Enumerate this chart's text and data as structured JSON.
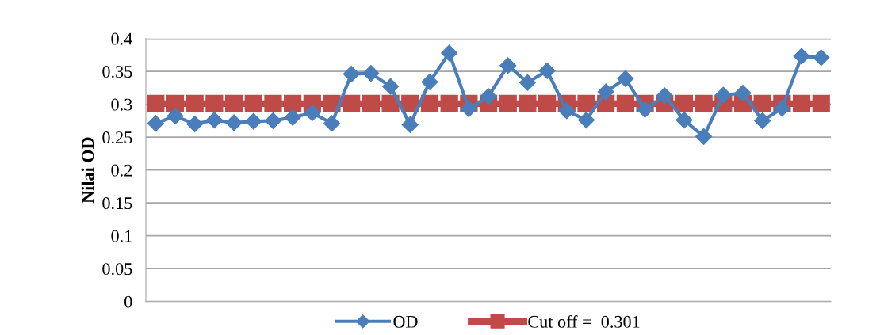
{
  "chart_data": {
    "type": "line",
    "ylabel": "Nilai OD",
    "categories": [
      null,
      null,
      null,
      null,
      null,
      null,
      null,
      null,
      null,
      null,
      null,
      null,
      null,
      null,
      null,
      null,
      null,
      null,
      null,
      null,
      null,
      null,
      null,
      null,
      null,
      null,
      null,
      null,
      null,
      null,
      null,
      null,
      null,
      null,
      null
    ],
    "series": [
      {
        "name": "OD",
        "color": "#4a7ebb",
        "marker": "diamond",
        "values": [
          0.271,
          0.282,
          0.27,
          0.276,
          0.272,
          0.274,
          0.275,
          0.28,
          0.287,
          0.271,
          0.346,
          0.347,
          0.327,
          0.269,
          0.334,
          0.378,
          0.293,
          0.312,
          0.359,
          0.333,
          0.351,
          0.29,
          0.276,
          0.319,
          0.339,
          0.292,
          0.313,
          0.276,
          0.251,
          0.314,
          0.317,
          0.275,
          0.294,
          0.373,
          0.371
        ]
      },
      {
        "name": "Cut off =  0.301",
        "color": "#be4b48",
        "marker": "square",
        "values": [
          0.301,
          0.301,
          0.301,
          0.301,
          0.301,
          0.301,
          0.301,
          0.301,
          0.301,
          0.301,
          0.301,
          0.301,
          0.301,
          0.301,
          0.301,
          0.301,
          0.301,
          0.301,
          0.301,
          0.301,
          0.301,
          0.301,
          0.301,
          0.301,
          0.301,
          0.301,
          0.301,
          0.301,
          0.301,
          0.301,
          0.301,
          0.301,
          0.301,
          0.301,
          0.301
        ]
      }
    ],
    "ylim": [
      0,
      0.4
    ],
    "yticks": [
      0,
      0.05,
      0.1,
      0.15,
      0.2,
      0.25,
      0.3,
      0.35,
      0.4
    ],
    "grid": "y",
    "legend": "bottom",
    "line_style": "solid"
  }
}
